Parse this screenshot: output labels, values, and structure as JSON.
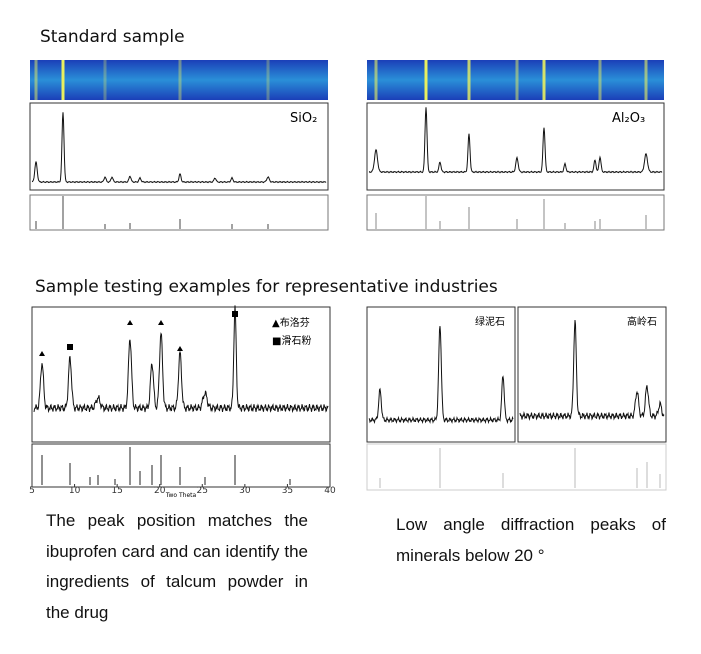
{
  "standard": {
    "title": "Standard sample",
    "left_label": "SiO₂",
    "right_label": "Al₂O₃"
  },
  "industries": {
    "title": "Sample testing examples for representative industries",
    "left_chart": {
      "legend": [
        "▲布洛芬",
        "■滑石粉"
      ],
      "xlim": [
        5,
        40
      ],
      "xticks": [
        5,
        10,
        15,
        20,
        25,
        30,
        35,
        40
      ],
      "xlabel": "Two Theta"
    },
    "right_chart": {
      "left_label": "绿泥石",
      "right_label": "高岭石"
    },
    "left_caption": "The peak position matches the ibuprofen card and can identify the ingredients of talcum powder in the drug",
    "right_caption": "Low angle diffraction peaks of minerals below 20 °"
  }
}
